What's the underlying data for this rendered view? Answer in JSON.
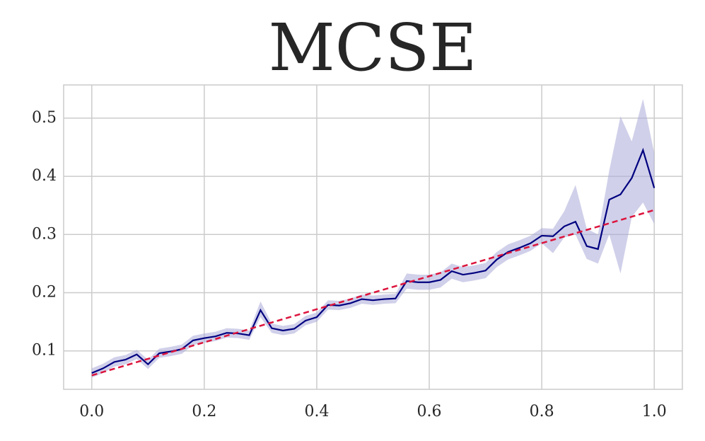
{
  "chart_data": {
    "type": "line",
    "title": "MCSE",
    "x": [
      0,
      0.02,
      0.04,
      0.06,
      0.08,
      0.1,
      0.12,
      0.14,
      0.16,
      0.18,
      0.2,
      0.22,
      0.24,
      0.26,
      0.28,
      0.3,
      0.32,
      0.34,
      0.36,
      0.38,
      0.4,
      0.42,
      0.44,
      0.46,
      0.48,
      0.5,
      0.52,
      0.54,
      0.56,
      0.58,
      0.6,
      0.62,
      0.64,
      0.66,
      0.68,
      0.7,
      0.72,
      0.74,
      0.76,
      0.78,
      0.8,
      0.82,
      0.84,
      0.86,
      0.88,
      0.9,
      0.92,
      0.94,
      0.96,
      0.98,
      1.0
    ],
    "series": [
      {
        "color": "#000080",
        "band_color": "#aaaad8",
        "values": [
          0.062,
          0.07,
          0.081,
          0.085,
          0.094,
          0.077,
          0.096,
          0.099,
          0.103,
          0.118,
          0.122,
          0.125,
          0.131,
          0.13,
          0.127,
          0.17,
          0.139,
          0.135,
          0.138,
          0.152,
          0.158,
          0.179,
          0.178,
          0.182,
          0.189,
          0.187,
          0.189,
          0.19,
          0.22,
          0.218,
          0.218,
          0.222,
          0.237,
          0.231,
          0.234,
          0.238,
          0.257,
          0.27,
          0.277,
          0.285,
          0.298,
          0.297,
          0.314,
          0.322,
          0.28,
          0.275,
          0.36,
          0.369,
          0.397,
          0.445,
          0.38
        ],
        "lower": [
          0.054,
          0.062,
          0.073,
          0.077,
          0.086,
          0.069,
          0.088,
          0.091,
          0.095,
          0.11,
          0.114,
          0.117,
          0.123,
          0.122,
          0.119,
          0.158,
          0.131,
          0.127,
          0.13,
          0.144,
          0.15,
          0.171,
          0.17,
          0.174,
          0.181,
          0.179,
          0.181,
          0.182,
          0.207,
          0.205,
          0.205,
          0.209,
          0.224,
          0.218,
          0.221,
          0.225,
          0.244,
          0.257,
          0.264,
          0.272,
          0.285,
          0.268,
          0.295,
          0.3,
          0.258,
          0.25,
          0.3,
          0.233,
          0.33,
          0.355,
          0.318
        ],
        "upper": [
          0.07,
          0.078,
          0.089,
          0.093,
          0.102,
          0.085,
          0.104,
          0.107,
          0.111,
          0.126,
          0.13,
          0.133,
          0.139,
          0.138,
          0.135,
          0.185,
          0.147,
          0.143,
          0.146,
          0.16,
          0.166,
          0.187,
          0.186,
          0.19,
          0.197,
          0.195,
          0.197,
          0.198,
          0.233,
          0.231,
          0.231,
          0.235,
          0.25,
          0.244,
          0.247,
          0.251,
          0.27,
          0.283,
          0.29,
          0.298,
          0.311,
          0.31,
          0.34,
          0.385,
          0.31,
          0.3,
          0.41,
          0.503,
          0.46,
          0.533,
          0.44
        ]
      },
      {
        "color": "#dc143c",
        "dashed": true,
        "x": [
          0,
          1.0
        ],
        "values": [
          0.058,
          0.342
        ]
      }
    ],
    "xlim": [
      -0.05,
      1.05
    ],
    "ylim": [
      0.034,
      0.557
    ],
    "xticks": [
      {
        "value": 0,
        "label": "0.0"
      },
      0.2,
      0.4,
      0.6,
      0.8,
      {
        "value": 1.0,
        "label": "1.0"
      }
    ],
    "yticks": [
      0.1,
      0.2,
      0.3,
      0.4,
      0.5
    ],
    "grid": true
  }
}
